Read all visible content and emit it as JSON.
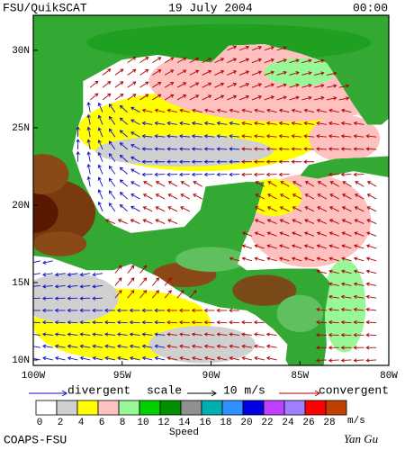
{
  "header": {
    "left": "FSU/QuikSCAT",
    "center": "19 July 2004",
    "right": "00:00"
  },
  "map": {
    "lon_range": [
      100,
      80
    ],
    "lat_range": [
      9.65,
      32.26
    ],
    "lon_ticks": [
      {
        "value": 100,
        "label": "100W"
      },
      {
        "value": 95,
        "label": "95W"
      },
      {
        "value": 90,
        "label": "90W"
      },
      {
        "value": 85,
        "label": "85W"
      },
      {
        "value": 80,
        "label": "80W"
      }
    ],
    "lat_ticks": [
      {
        "value": 10,
        "label": "10N"
      },
      {
        "value": 15,
        "label": "15N"
      },
      {
        "value": 20,
        "label": "20N"
      },
      {
        "value": 25,
        "label": "25N"
      },
      {
        "value": 30,
        "label": "30N"
      }
    ]
  },
  "legend": {
    "divergent": "divergent",
    "divergent_color": "#1010c0",
    "scale": "scale",
    "scale_value": "10 m/s",
    "convergent": "convergent",
    "convergent_color": "#b00000"
  },
  "colorbar": {
    "labels": [
      0,
      2,
      4,
      6,
      8,
      10,
      12,
      14,
      16,
      18,
      20,
      22,
      24,
      26,
      28
    ],
    "colors": [
      "#ffffff",
      "#d0d0d0",
      "#ffff00",
      "#ffc0c0",
      "#98f898",
      "#00d000",
      "#009000",
      "#909090",
      "#00b0b0",
      "#3090ff",
      "#0000e0",
      "#c040ff",
      "#a080ff",
      "#ff0000",
      "#c04000"
    ],
    "unit": "m/s",
    "title": "Speed"
  },
  "footer": {
    "left": "COAPS-FSU",
    "right": "Yan Gu"
  }
}
